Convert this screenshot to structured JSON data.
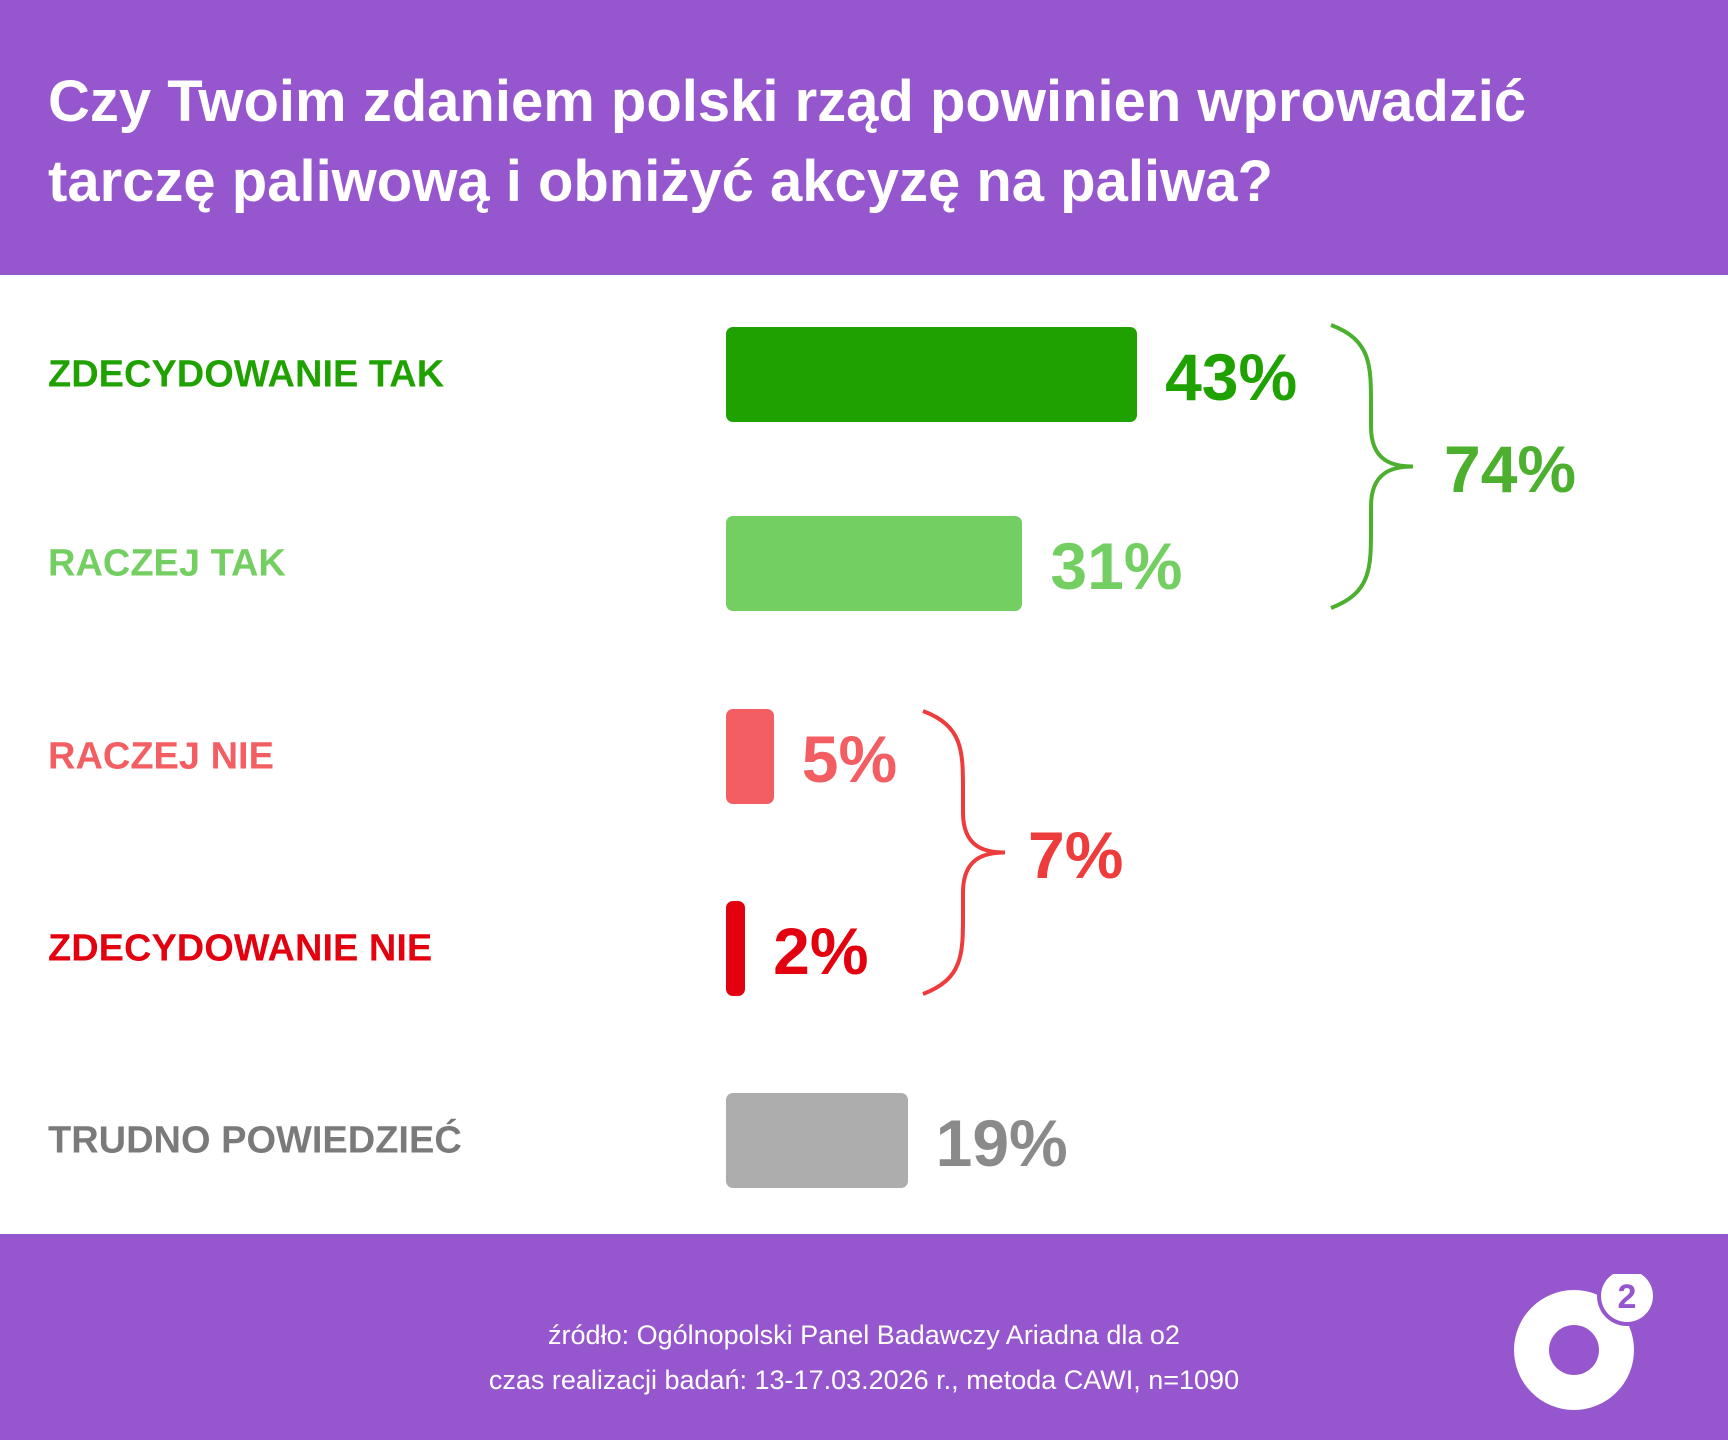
{
  "title": "Czy Twoim zdaniem polski rząd powinien wprowadzić tarczę paliwową i obniżyć akcyzę na paliwa?",
  "chart_data": {
    "type": "bar",
    "orientation": "horizontal",
    "title": "Czy Twoim zdaniem polski rząd powinien wprowadzić tarczę paliwową i obniżyć akcyzę na paliwa?",
    "categories": [
      "ZDECYDOWANIE TAK",
      "RACZEJ TAK",
      "RACZEJ NIE",
      "ZDECYDOWANIE NIE",
      "TRUDNO POWIEDZIEĆ"
    ],
    "values": [
      43,
      31,
      5,
      2,
      19
    ],
    "value_labels": [
      "43%",
      "31%",
      "5%",
      "2%",
      "19%"
    ],
    "colors": [
      "#1FA100",
      "#74CF62",
      "#F35E62",
      "#E3000F",
      "#ADADAD"
    ],
    "label_colors": [
      "#1FA100",
      "#74CF62",
      "#F35E62",
      "#E3000F",
      "#7A7A7A"
    ],
    "groups": [
      {
        "label": "74%",
        "value": 74,
        "members": [
          "ZDECYDOWANIE TAK",
          "RACZEJ TAK"
        ],
        "color": "#4CAF2E"
      },
      {
        "label": "7%",
        "value": 7,
        "members": [
          "RACZEJ NIE",
          "ZDECYDOWANIE NIE"
        ],
        "color": "#EE3B3B"
      }
    ],
    "unit": "%"
  },
  "footer": {
    "source": "źródło: Ogólnopolski Panel Badawczy Ariadna dla o2",
    "details": "czas realizacji badań: 13-17.03.2026 r., metoda CAWI, n=1090"
  },
  "logo": {
    "text": "o2",
    "accent": "#9656CE"
  }
}
